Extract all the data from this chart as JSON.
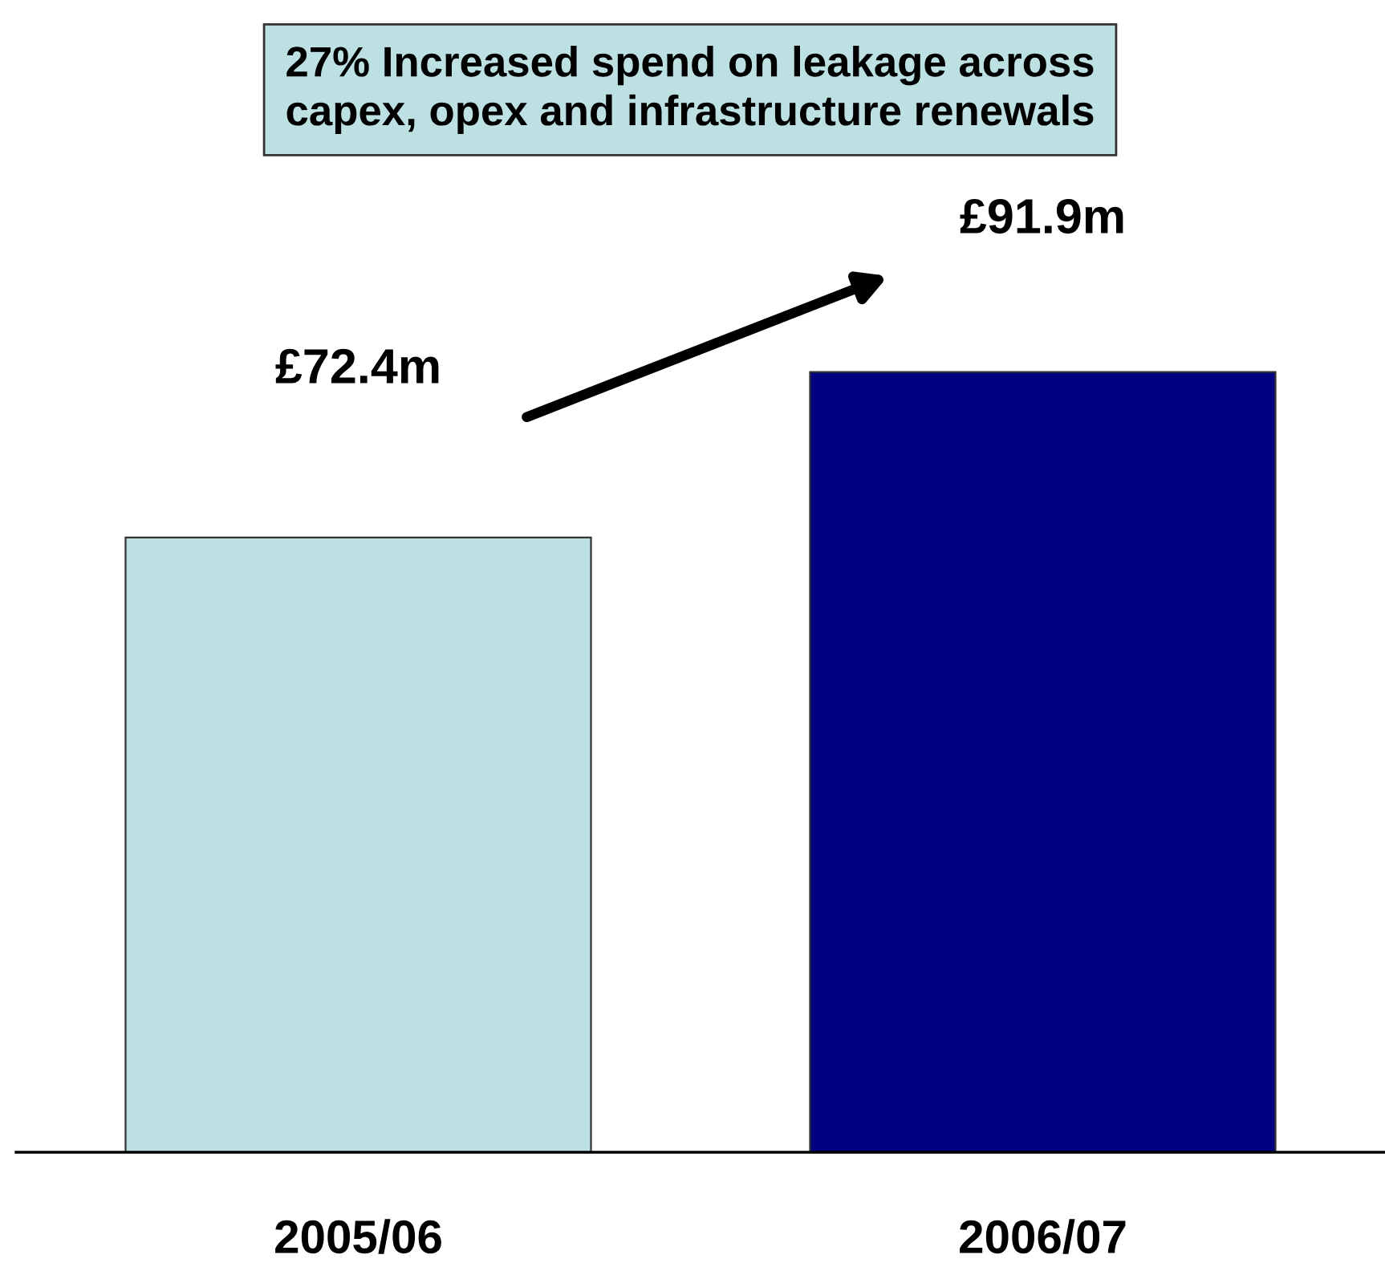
{
  "chart_data": {
    "type": "bar",
    "title": "27% Increased spend on leakage across\ncapex, opex and infrastructure renewals",
    "categories": [
      "2005/06",
      "2006/07"
    ],
    "values": [
      72.4,
      91.9
    ],
    "colors": [
      "#bde1e3",
      "#000080"
    ],
    "value_labels": [
      "£72.4m",
      "£91.9m"
    ],
    "grid": false,
    "legend": false
  }
}
